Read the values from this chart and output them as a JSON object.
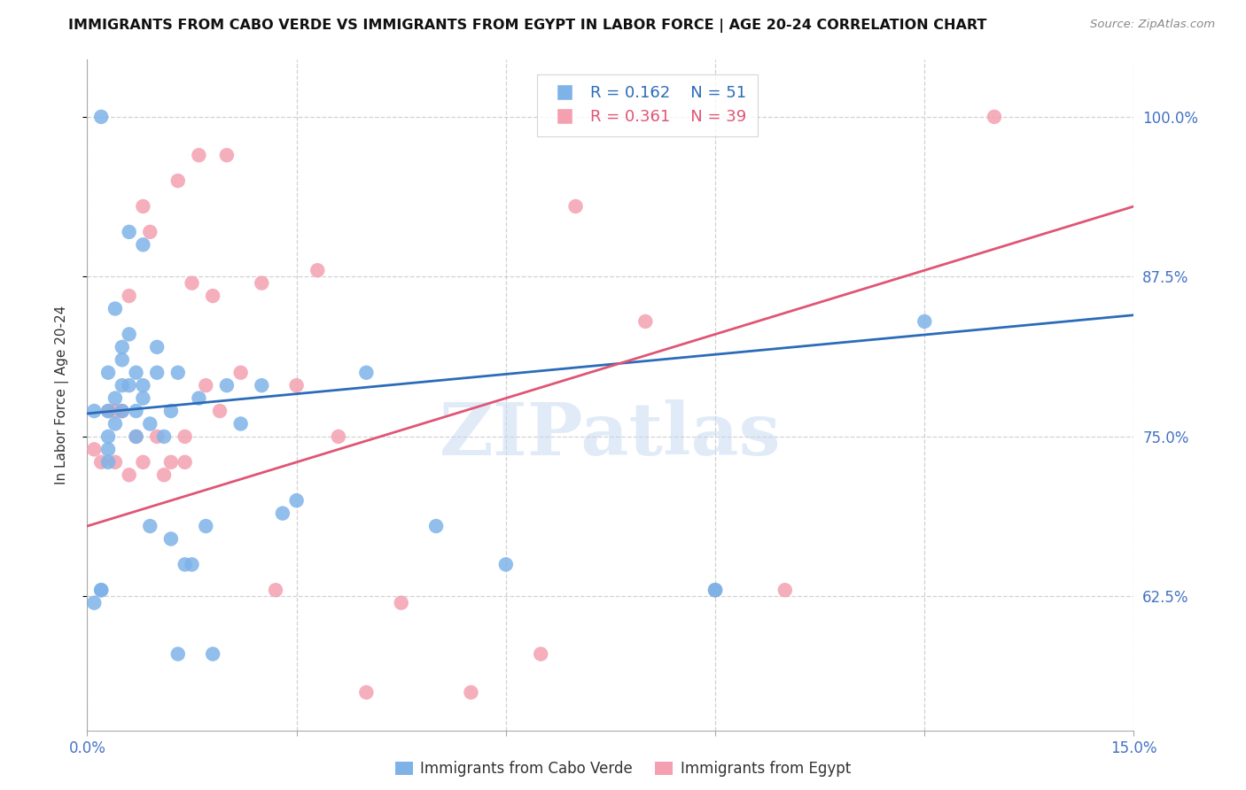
{
  "title": "IMMIGRANTS FROM CABO VERDE VS IMMIGRANTS FROM EGYPT IN LABOR FORCE | AGE 20-24 CORRELATION CHART",
  "source_text": "Source: ZipAtlas.com",
  "ylabel": "In Labor Force | Age 20-24",
  "xlim": [
    0.0,
    0.15
  ],
  "ylim": [
    0.52,
    1.045
  ],
  "yticks": [
    0.625,
    0.75,
    0.875,
    1.0
  ],
  "ytick_labels": [
    "62.5%",
    "75.0%",
    "87.5%",
    "100.0%"
  ],
  "xticks": [
    0.0,
    0.03,
    0.06,
    0.09,
    0.12,
    0.15
  ],
  "xtick_labels": [
    "0.0%",
    "",
    "",
    "",
    "",
    "15.0%"
  ],
  "cabo_verde_color": "#7EB3E8",
  "egypt_color": "#F4A0B0",
  "cabo_verde_line_color": "#2B6CB8",
  "egypt_line_color": "#E05575",
  "cabo_verde_R": 0.162,
  "cabo_verde_N": 51,
  "egypt_R": 0.361,
  "egypt_N": 39,
  "background_color": "#ffffff",
  "grid_color": "#cccccc",
  "axis_color": "#4472c4",
  "watermark": "ZIPatlas",
  "cabo_verde_x": [
    0.001,
    0.001,
    0.002,
    0.002,
    0.002,
    0.003,
    0.003,
    0.003,
    0.003,
    0.003,
    0.004,
    0.004,
    0.004,
    0.005,
    0.005,
    0.005,
    0.005,
    0.006,
    0.006,
    0.006,
    0.007,
    0.007,
    0.007,
    0.008,
    0.008,
    0.008,
    0.009,
    0.009,
    0.01,
    0.01,
    0.011,
    0.012,
    0.012,
    0.013,
    0.013,
    0.014,
    0.015,
    0.016,
    0.017,
    0.018,
    0.02,
    0.022,
    0.025,
    0.028,
    0.03,
    0.04,
    0.05,
    0.06,
    0.09,
    0.09,
    0.12
  ],
  "cabo_verde_y": [
    0.77,
    0.62,
    0.63,
    0.63,
    1.0,
    0.77,
    0.8,
    0.73,
    0.74,
    0.75,
    0.78,
    0.76,
    0.85,
    0.79,
    0.81,
    0.82,
    0.77,
    0.79,
    0.91,
    0.83,
    0.77,
    0.8,
    0.75,
    0.79,
    0.78,
    0.9,
    0.68,
    0.76,
    0.8,
    0.82,
    0.75,
    0.67,
    0.77,
    0.8,
    0.58,
    0.65,
    0.65,
    0.78,
    0.68,
    0.58,
    0.79,
    0.76,
    0.79,
    0.69,
    0.7,
    0.8,
    0.68,
    0.65,
    0.63,
    0.63,
    0.84
  ],
  "egypt_x": [
    0.001,
    0.002,
    0.003,
    0.004,
    0.004,
    0.005,
    0.006,
    0.006,
    0.007,
    0.008,
    0.008,
    0.009,
    0.01,
    0.011,
    0.012,
    0.013,
    0.014,
    0.014,
    0.015,
    0.016,
    0.017,
    0.018,
    0.019,
    0.02,
    0.022,
    0.025,
    0.027,
    0.03,
    0.033,
    0.036,
    0.04,
    0.045,
    0.055,
    0.065,
    0.07,
    0.08,
    0.09,
    0.1,
    0.13
  ],
  "egypt_y": [
    0.74,
    0.73,
    0.77,
    0.77,
    0.73,
    0.77,
    0.86,
    0.72,
    0.75,
    0.93,
    0.73,
    0.91,
    0.75,
    0.72,
    0.73,
    0.95,
    0.75,
    0.73,
    0.87,
    0.97,
    0.79,
    0.86,
    0.77,
    0.97,
    0.8,
    0.87,
    0.63,
    0.79,
    0.88,
    0.75,
    0.55,
    0.62,
    0.55,
    0.58,
    0.93,
    0.84,
    0.63,
    0.63,
    1.0
  ],
  "cabo_verde_trend_x": [
    0.0,
    0.15
  ],
  "cabo_verde_trend_y": [
    0.768,
    0.845
  ],
  "egypt_trend_x": [
    0.0,
    0.15
  ],
  "egypt_trend_y": [
    0.68,
    0.93
  ]
}
